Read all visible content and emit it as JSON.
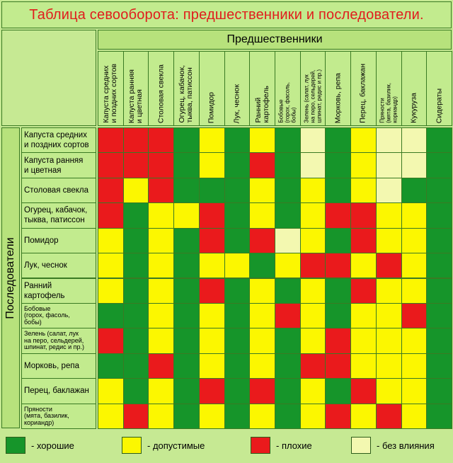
{
  "title": "Таблица севооборота: предшественники и последователи.",
  "predecessors_label": "Предшественники",
  "followers_label": "Последователи",
  "colors": {
    "good": "#16952a",
    "ok": "#fcf700",
    "bad": "#ea1a1c",
    "none": "#f3f8b0"
  },
  "columns": [
    "Капуста средних\nи поздних сортов",
    "Капуста ранняя\nи цветная",
    "Столовая свекла",
    "Огурец, кабачок,\nтыква, патиссон",
    "Помидор",
    "Лук, чеснок",
    "Ранний\nкартофель",
    "Бобовые\n(горох, фасоль,\nбобы)",
    "Зелень (салат, лук\nна перо, сельдерей,\nшпинат, редис и пр.)",
    "Морковь, репа",
    "Перец, баклажан",
    "Пряности\n(мята, базилик,\nкориандр)",
    "Кукуруза",
    "Сидераты"
  ],
  "rows": [
    "Капуста средних\nи поздних сортов",
    "Капуста ранняя\nи цветная",
    "Столовая свекла",
    "Огурец, кабачок,\nтыква, патиссон",
    "Помидор",
    "Лук, чеснок",
    "Ранний\nкартофель",
    "Бобовые\n(горох, фасоль,\nбобы)",
    "Зелень (салат, лук\nна перо, сельдерей,\nшпинат, редис и пр.)",
    "Морковь, репа",
    "Перец, баклажан",
    "Пряности\n(мята, базилик,\nкориандр)"
  ],
  "matrix": [
    [
      "bad",
      "bad",
      "bad",
      "good",
      "ok",
      "good",
      "ok",
      "good",
      "none",
      "good",
      "ok",
      "none",
      "none",
      "good"
    ],
    [
      "bad",
      "bad",
      "bad",
      "good",
      "ok",
      "good",
      "bad",
      "good",
      "none",
      "good",
      "ok",
      "none",
      "none",
      "good"
    ],
    [
      "bad",
      "ok",
      "bad",
      "good",
      "good",
      "good",
      "ok",
      "good",
      "ok",
      "good",
      "ok",
      "none",
      "good",
      "good"
    ],
    [
      "bad",
      "good",
      "ok",
      "ok",
      "bad",
      "good",
      "ok",
      "good",
      "ok",
      "bad",
      "bad",
      "ok",
      "ok",
      "good"
    ],
    [
      "ok",
      "good",
      "ok",
      "good",
      "bad",
      "good",
      "bad",
      "none",
      "ok",
      "good",
      "bad",
      "ok",
      "ok",
      "good"
    ],
    [
      "ok",
      "good",
      "ok",
      "good",
      "ok",
      "ok",
      "good",
      "ok",
      "bad",
      "bad",
      "ok",
      "bad",
      "ok",
      "good"
    ],
    [
      "ok",
      "good",
      "ok",
      "good",
      "bad",
      "good",
      "ok",
      "good",
      "ok",
      "good",
      "bad",
      "ok",
      "ok",
      "good"
    ],
    [
      "good",
      "good",
      "ok",
      "good",
      "ok",
      "good",
      "ok",
      "bad",
      "ok",
      "good",
      "ok",
      "ok",
      "bad",
      "good"
    ],
    [
      "bad",
      "good",
      "ok",
      "good",
      "ok",
      "good",
      "ok",
      "good",
      "ok",
      "bad",
      "ok",
      "ok",
      "ok",
      "good"
    ],
    [
      "good",
      "good",
      "bad",
      "good",
      "ok",
      "good",
      "ok",
      "good",
      "bad",
      "bad",
      "ok",
      "ok",
      "ok",
      "good"
    ],
    [
      "ok",
      "good",
      "ok",
      "good",
      "bad",
      "good",
      "bad",
      "good",
      "ok",
      "good",
      "bad",
      "ok",
      "ok",
      "good"
    ],
    [
      "ok",
      "bad",
      "ok",
      "good",
      "ok",
      "good",
      "ok",
      "good",
      "ok",
      "bad",
      "ok",
      "bad",
      "ok",
      "good"
    ]
  ],
  "legend": [
    {
      "key": "good",
      "label": "- хорошие"
    },
    {
      "key": "ok",
      "label": "- допустимые"
    },
    {
      "key": "bad",
      "label": "- плохие"
    },
    {
      "key": "none",
      "label": "- без влияния"
    }
  ]
}
